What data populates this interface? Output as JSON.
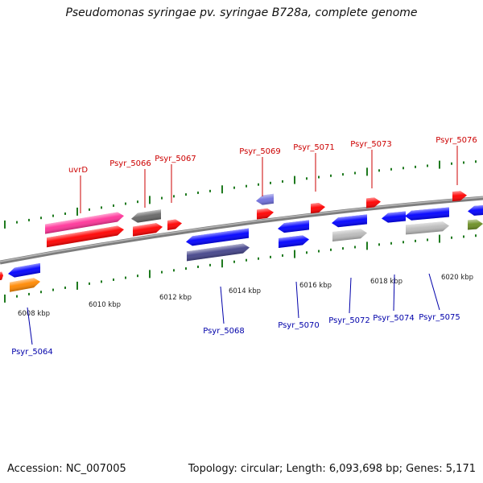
{
  "title": "Pseudomonas syringae pv. syringae B728a, complete genome",
  "footer": {
    "accession": "Accession: NC_007005",
    "topology": "Topology: circular; Length: 6,093,698 bp; Genes: 5,171"
  },
  "colors": {
    "backbone": "#8a8a8a",
    "tick": "#1f7a1f",
    "forward_label": "#cc0000",
    "reverse_label": "#0000aa",
    "forward_gene": "#ff0000",
    "reverse_gene": "#0000ff"
  },
  "ruler_labels": [
    "6008 kbp",
    "6010 kbp",
    "6012 kbp",
    "6014 kbp",
    "6016 kbp",
    "6018 kbp",
    "6020 kbp"
  ],
  "forward_genes": [
    {
      "name": "uvrD",
      "color": "#ff3399"
    },
    {
      "name": "Psyr_5066",
      "color": "#666666"
    },
    {
      "name": "Psyr_5067",
      "color": "#ff0000"
    },
    {
      "name": "Psyr_5069",
      "color": "#7070dd"
    },
    {
      "name": "Psyr_5071",
      "color": "#ff0000"
    },
    {
      "name": "Psyr_5073",
      "color": "#ff0000"
    },
    {
      "name": "Psyr_5076",
      "color": "#ff0000"
    }
  ],
  "reverse_genes": [
    {
      "name": "Psyr_5064",
      "color": "#ff8800"
    },
    {
      "name": "Psyr_5068",
      "color": "#44448a"
    },
    {
      "name": "Psyr_5070",
      "color": "#0000ff"
    },
    {
      "name": "Psyr_5072",
      "color": "#bbbbbb"
    },
    {
      "name": "Psyr_5074",
      "color": "#0000ff"
    },
    {
      "name": "Psyr_5075",
      "color": "#bbbbbb"
    }
  ]
}
